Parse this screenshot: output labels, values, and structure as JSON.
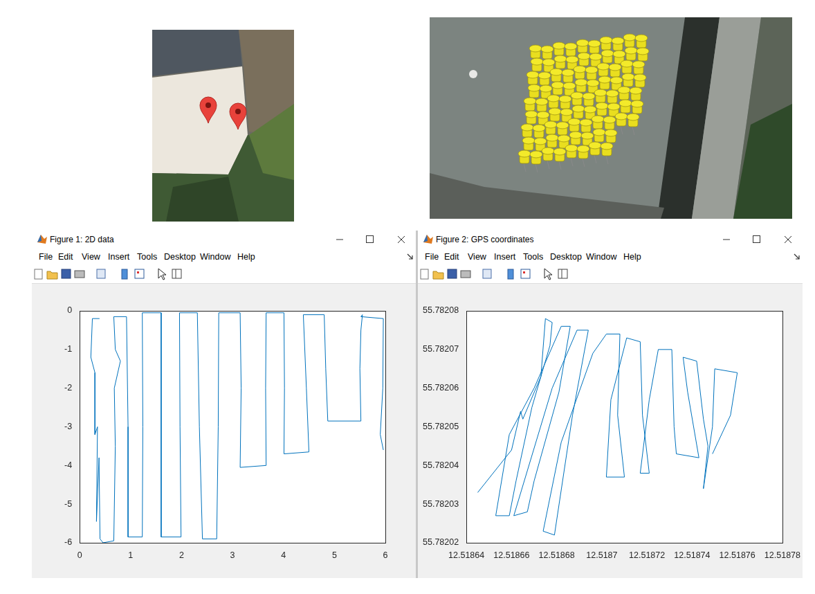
{
  "menu": [
    "File",
    "Edit",
    "View",
    "Insert",
    "Tools",
    "Desktop",
    "Window",
    "Help"
  ],
  "chart_data": [
    {
      "type": "line",
      "title": "Figure 1: 2D data",
      "color": "#0072bd",
      "grid": false,
      "xlim": [
        0,
        6
      ],
      "ylim": [
        -6,
        0
      ],
      "xticks": [
        0,
        1,
        2,
        3,
        4,
        5,
        6
      ],
      "yticks": [
        -6,
        -5,
        -4,
        -3,
        -2,
        -1,
        0
      ],
      "x": [
        0.39,
        0.25,
        0.22,
        0.3,
        0.3,
        0.35,
        0.33,
        0.38,
        0.4,
        0.46,
        0.67,
        0.7,
        0.68,
        0.8,
        0.7,
        0.67,
        0.92,
        0.95,
        0.95,
        1.23,
        1.24,
        1.23,
        1.6,
        1.6,
        1.6,
        1.99,
        1.97,
        1.96,
        2.31,
        2.35,
        2.41,
        2.69,
        2.72,
        2.73,
        3.15,
        3.17,
        3.15,
        3.66,
        3.65,
        3.66,
        4.01,
        4.02,
        4.01,
        4.5,
        4.45,
        4.39,
        4.8,
        4.83,
        4.87,
        5.52,
        5.5,
        5.52,
        5.55,
        5.52,
        5.96,
        5.95,
        5.9,
        5.96
      ],
      "values": [
        -0.2,
        -0.2,
        -1.2,
        -1.6,
        -3.2,
        -3.0,
        -5.45,
        -3.8,
        -5.9,
        -6.0,
        -5.95,
        -3.5,
        -2.0,
        -1.3,
        -1.0,
        -0.15,
        -0.15,
        -3.0,
        -5.85,
        -5.85,
        -3.0,
        -0.05,
        -0.05,
        -3.0,
        -5.85,
        -5.85,
        -3.0,
        -0.05,
        -0.05,
        -3.0,
        -5.9,
        -5.9,
        -3.0,
        -0.05,
        -0.05,
        -2.0,
        -4.05,
        -4.0,
        -2.0,
        -0.05,
        -0.05,
        -2.0,
        -3.7,
        -3.65,
        -2.0,
        -0.1,
        -0.1,
        -1.5,
        -2.85,
        -2.85,
        -1.5,
        -0.5,
        -0.1,
        -0.15,
        -0.2,
        -2.0,
        -3.2,
        -3.6
      ]
    },
    {
      "type": "line",
      "title": "Figure 2: GPS coordinates",
      "color": "#0072bd",
      "grid": false,
      "xlim": [
        12.51864,
        12.51878
      ],
      "ylim": [
        55.78202,
        55.78208
      ],
      "xticks": [
        12.51864,
        12.51866,
        12.51868,
        12.5187,
        12.51872,
        12.51874,
        12.51876,
        12.51878
      ],
      "yticks": [
        55.78202,
        55.78203,
        55.78204,
        55.78205,
        55.78206,
        55.78207,
        55.78208
      ],
      "x": [
        12.518645,
        12.51866,
        12.518664,
        12.518665,
        12.518673,
        12.518675,
        12.518678,
        12.518677,
        12.518669,
        12.518662,
        12.518659,
        12.518653,
        12.518659,
        12.51867,
        12.518682,
        12.518686,
        12.518681,
        12.51867,
        12.518667,
        12.518661,
        12.518678,
        12.518689,
        12.518694,
        12.518687,
        12.518679,
        12.518674,
        12.518682,
        12.518696,
        12.518702,
        12.518708,
        12.518707,
        12.51871,
        12.518702,
        12.518704,
        12.518711,
        12.518717,
        12.518718,
        12.518721,
        12.518717,
        12.518721,
        12.518725,
        12.518731,
        12.518732,
        12.518733,
        12.518743,
        12.518738,
        12.518736,
        12.518742,
        12.518745,
        12.518747,
        12.518745,
        12.518749,
        12.51875,
        12.51876,
        12.518757,
        12.518749
      ],
      "values": [
        55.782033,
        55.782044,
        55.782054,
        55.782052,
        55.782063,
        55.782078,
        55.782077,
        55.782071,
        55.782055,
        55.782036,
        55.782027,
        55.782027,
        55.782048,
        55.78206,
        55.782076,
        55.782076,
        55.782059,
        55.782036,
        55.782028,
        55.782027,
        55.78206,
        55.782075,
        55.782075,
        55.782053,
        55.782022,
        55.782023,
        55.782046,
        55.782069,
        55.782074,
        55.782074,
        55.782053,
        55.782037,
        55.782037,
        55.782057,
        55.782073,
        55.782072,
        55.782053,
        55.782038,
        55.782038,
        55.782057,
        55.78207,
        55.78207,
        55.78205,
        55.782043,
        55.782042,
        55.782059,
        55.782068,
        55.782067,
        55.782052,
        55.782045,
        55.782034,
        55.78205,
        55.782065,
        55.782064,
        55.782053,
        55.782043
      ]
    }
  ]
}
